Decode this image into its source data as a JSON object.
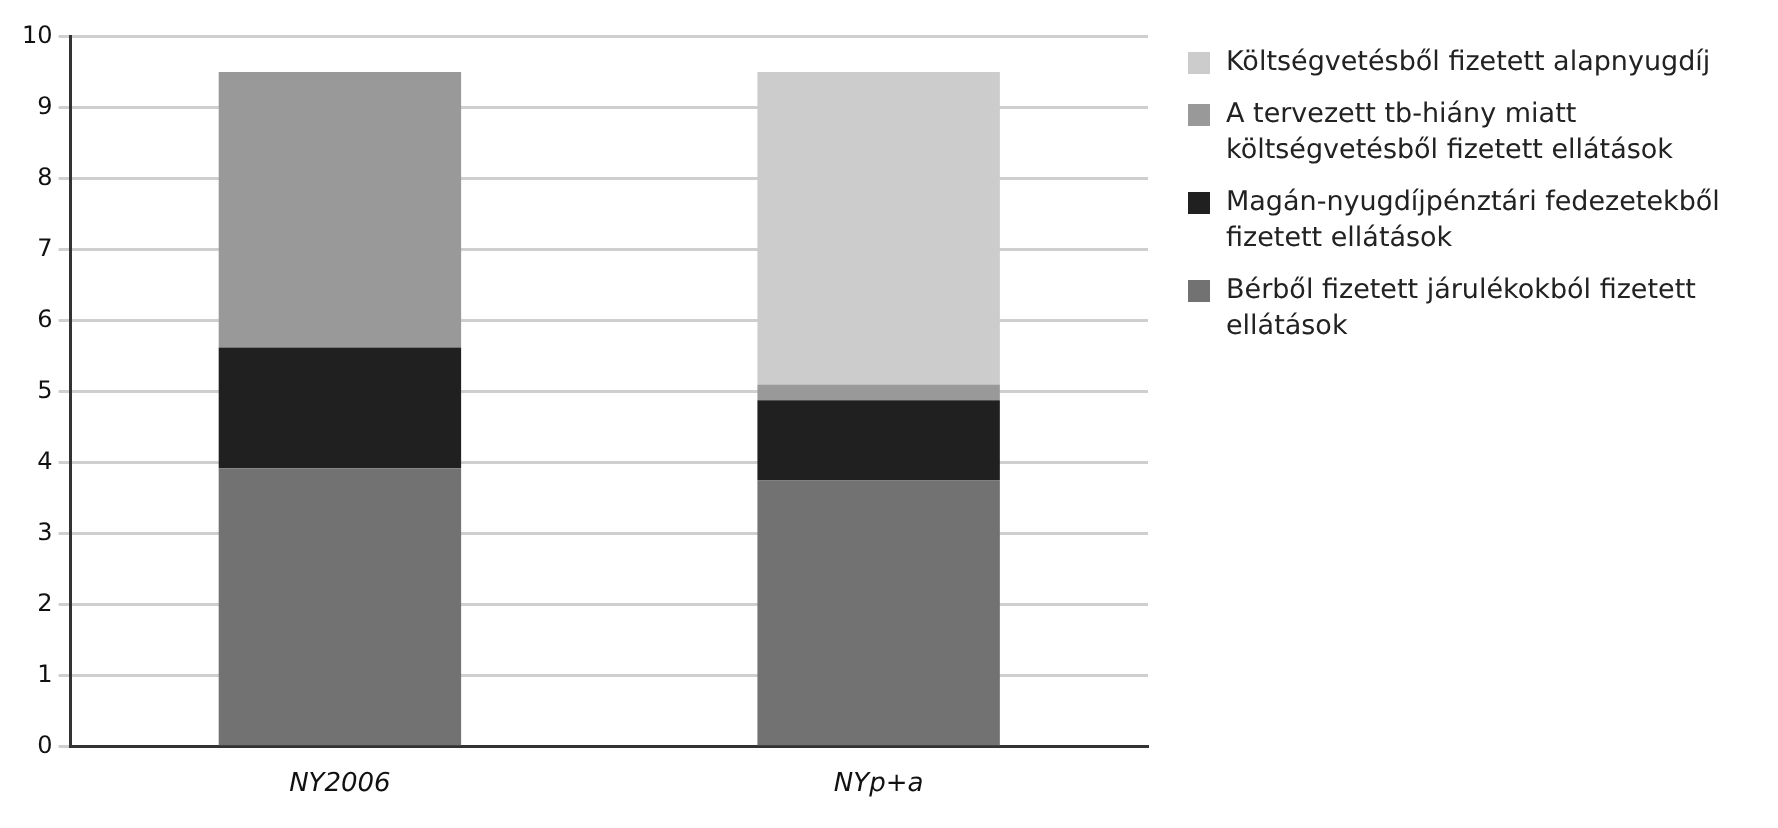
{
  "chart_data": {
    "type": "bar",
    "stacked": true,
    "categories": [
      "NY2006",
      "NYp+a"
    ],
    "series": [
      {
        "name": "Bérből fizetett járulékokból fizetett ellátások",
        "color": "#727272",
        "values": [
          3.92,
          3.75
        ]
      },
      {
        "name": "Magán-nyugdíjpénztári fedezetekből fizetett ellátások",
        "color": "#202020",
        "values": [
          1.7,
          1.13
        ]
      },
      {
        "name": "A tervezett tb-hiány miatt költségvetésből fizetett ellátások",
        "color": "#999999",
        "values": [
          3.88,
          0.22
        ]
      },
      {
        "name": "Költségvetésből fizetett alapnyugdíj",
        "color": "#cccccc",
        "values": [
          0,
          4.4
        ]
      }
    ],
    "ylim": [
      0,
      10
    ],
    "yticks": [
      0,
      1,
      2,
      3,
      4,
      5,
      6,
      7,
      8,
      9,
      10
    ],
    "grid": "y",
    "legend": "right"
  }
}
